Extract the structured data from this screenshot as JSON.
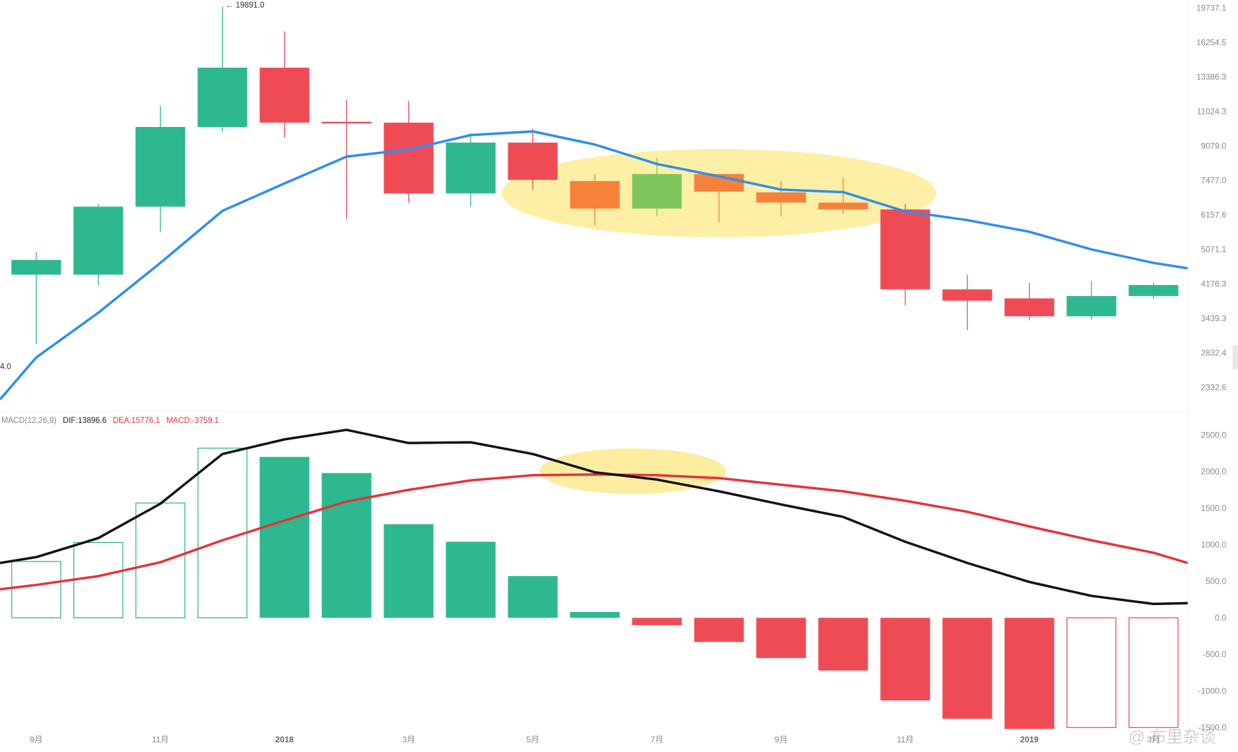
{
  "chart_data": [
    {
      "type": "candlestick",
      "panel": "price",
      "x": [
        "2017-09",
        "2017-10",
        "2017-11",
        "2017-12",
        "2018-01",
        "2018-02",
        "2018-03",
        "2018-04",
        "2018-05",
        "2018-06",
        "2018-07",
        "2018-08",
        "2018-09",
        "2018-10",
        "2018-11",
        "2018-12",
        "2019-01",
        "2019-02",
        "2019-03"
      ],
      "candles": [
        {
          "open": 4400,
          "close": 4780,
          "high": 5000,
          "low": 2980
        },
        {
          "open": 4400,
          "close": 6450,
          "high": 6550,
          "low": 4150
        },
        {
          "open": 6450,
          "close": 10100,
          "high": 11400,
          "low": 5600
        },
        {
          "open": 10100,
          "close": 14100,
          "high": 19891.0,
          "low": 9850
        },
        {
          "open": 14100,
          "close": 10350,
          "high": 17300,
          "low": 9500
        },
        {
          "open": 10400,
          "close": 10300,
          "high": 11750,
          "low": 6000
        },
        {
          "open": 10350,
          "close": 6950,
          "high": 11700,
          "low": 6600
        },
        {
          "open": 6950,
          "close": 9250,
          "high": 9750,
          "low": 6450
        },
        {
          "open": 9250,
          "close": 7500,
          "high": 10000,
          "low": 7100
        },
        {
          "open": 7450,
          "close": 6380,
          "high": 7750,
          "low": 5800
        },
        {
          "open": 6380,
          "close": 7750,
          "high": 8500,
          "low": 6100
        },
        {
          "open": 7750,
          "close": 7020,
          "high": 7750,
          "low": 5900
        },
        {
          "open": 6990,
          "close": 6600,
          "high": 7450,
          "low": 6100
        },
        {
          "open": 6600,
          "close": 6350,
          "high": 7600,
          "low": 6200
        },
        {
          "open": 6350,
          "close": 4050,
          "high": 6550,
          "low": 3700
        },
        {
          "open": 4050,
          "close": 3800,
          "high": 4400,
          "low": 3220
        },
        {
          "open": 3850,
          "close": 3480,
          "high": 4200,
          "low": 3400
        },
        {
          "open": 3480,
          "close": 3900,
          "high": 4250,
          "low": 3410
        },
        {
          "open": 3900,
          "close": 4150,
          "high": 4210,
          "low": 3840
        }
      ],
      "ma_line": [
        2180,
        2760,
        3550,
        4700,
        6300,
        7350,
        8550,
        8900,
        9650,
        9850,
        9150,
        8200,
        7650,
        7100,
        7000,
        6280,
        5980,
        5600,
        5070,
        4700,
        4560
      ],
      "y_ticks": [
        "19737.1",
        "16254.5",
        "13386.3",
        "11024.3",
        "9079.0",
        "7477.0",
        "6157.6",
        "5071.1",
        "4176.3",
        "3439.3",
        "2832.4",
        "2332.6"
      ],
      "high_annotation": "← 19891.0",
      "edge_annotation": "4.0",
      "ellipse_highlight": {
        "from": "2018-06",
        "to": "2018-10"
      },
      "colors": {
        "up": "#2db890",
        "down": "#ef4b55",
        "highlight_candle": "#f5813b",
        "highlight_up": "#7ec65c",
        "ma": "#2b8ef0",
        "ellipse": "#fde98a"
      }
    },
    {
      "type": "macd",
      "panel": "indicator",
      "legend": {
        "title": "MACD(12,26,9)",
        "dif": "DIF:13896.6",
        "dea": "DEA:15776.1",
        "macd": "MACD:-3759.1"
      },
      "histogram": [
        770,
        1030,
        1570,
        2320,
        2200,
        1980,
        1280,
        1040,
        570,
        80,
        -100,
        -330,
        -550,
        -720,
        -1130,
        -1380,
        -1520,
        -1500,
        -1500
      ],
      "histogram_hollow": [
        true,
        true,
        true,
        true,
        false,
        false,
        false,
        false,
        false,
        false,
        false,
        false,
        false,
        false,
        false,
        false,
        false,
        true,
        true
      ],
      "dif_points": [
        750,
        830,
        1090,
        1560,
        2240,
        2440,
        2570,
        2390,
        2400,
        2240,
        1990,
        1890,
        1730,
        1550,
        1380,
        1040,
        750,
        490,
        300,
        190,
        200
      ],
      "dea_points": [
        390,
        450,
        570,
        760,
        1060,
        1330,
        1590,
        1750,
        1880,
        1950,
        1960,
        1950,
        1910,
        1820,
        1730,
        1600,
        1450,
        1250,
        1060,
        890,
        750
      ],
      "y_ticks": [
        "2500.0",
        "2000.0",
        "1500.0",
        "1000.0",
        "500.0",
        "0.0",
        "-500.0",
        "-1000.0",
        "-1500.0"
      ],
      "ellipse_highlight": {
        "from": "2018-05",
        "to": "2018-08"
      },
      "colors": {
        "up": "#2db890",
        "down": "#ef4b55",
        "dif": "#111111",
        "dea": "#e8313a",
        "ellipse": "#fde98a"
      }
    }
  ],
  "x_axis_labels": [
    {
      "label": "9月",
      "index": 0
    },
    {
      "label": "11月",
      "index": 2
    },
    {
      "label": "2018",
      "index": 4,
      "bold": true
    },
    {
      "label": "3月",
      "index": 6
    },
    {
      "label": "5月",
      "index": 8
    },
    {
      "label": "7月",
      "index": 10
    },
    {
      "label": "9月",
      "index": 12
    },
    {
      "label": "11月",
      "index": 14
    },
    {
      "label": "2019",
      "index": 16,
      "bold": true
    },
    {
      "label": "3月",
      "index": 18
    }
  ],
  "watermark": "@ 布里杂谈"
}
